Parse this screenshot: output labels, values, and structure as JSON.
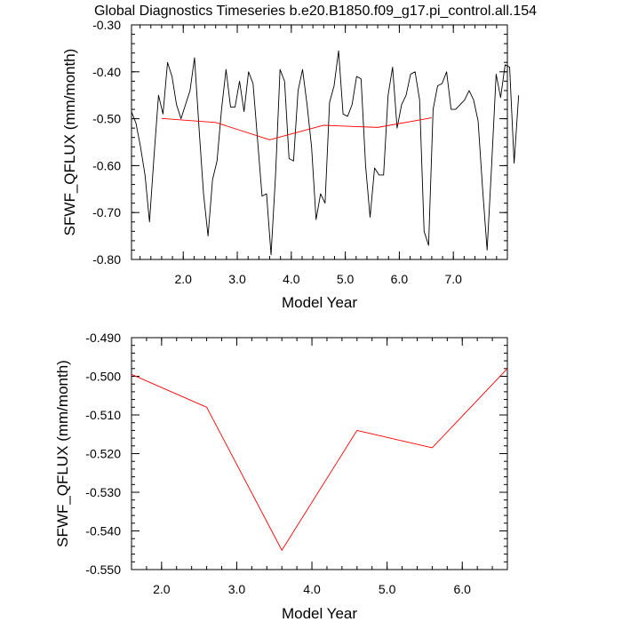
{
  "chart_data": [
    {
      "type": "line",
      "title": "Global Diagnostics Timeseries b.e20.B1850.f09_g17.pi_control.all.154",
      "xlabel": "Model Year",
      "ylabel": "SFWF_QFLUX (mm/month)",
      "xlim": [
        1.042,
        8.0
      ],
      "ylim": [
        -0.8,
        -0.3
      ],
      "xticks": [
        2.0,
        3.0,
        4.0,
        5.0,
        6.0,
        7.0
      ],
      "xtick_labels": [
        "2.0",
        "3.0",
        "4.0",
        "5.0",
        "6.0",
        "7.0"
      ],
      "yticks": [
        -0.3,
        -0.4,
        -0.5,
        -0.6,
        -0.7,
        -0.8
      ],
      "ytick_labels": [
        "-0.30",
        "-0.40",
        "-0.50",
        "-0.60",
        "-0.70",
        "-0.80"
      ],
      "grid": false,
      "series": [
        {
          "color": "#000000",
          "x_start": 1.042,
          "x_step": 0.08333,
          "values": [
            -0.485,
            -0.51,
            -0.56,
            -0.62,
            -0.72,
            -0.58,
            -0.45,
            -0.49,
            -0.38,
            -0.41,
            -0.47,
            -0.5,
            -0.47,
            -0.44,
            -0.37,
            -0.52,
            -0.66,
            -0.75,
            -0.63,
            -0.59,
            -0.48,
            -0.395,
            -0.475,
            -0.475,
            -0.42,
            -0.485,
            -0.4,
            -0.425,
            -0.545,
            -0.665,
            -0.66,
            -0.79,
            -0.62,
            -0.395,
            -0.42,
            -0.585,
            -0.59,
            -0.44,
            -0.395,
            -0.47,
            -0.56,
            -0.715,
            -0.66,
            -0.68,
            -0.465,
            -0.43,
            -0.355,
            -0.49,
            -0.495,
            -0.47,
            -0.41,
            -0.415,
            -0.6,
            -0.71,
            -0.605,
            -0.62,
            -0.62,
            -0.45,
            -0.39,
            -0.52,
            -0.47,
            -0.45,
            -0.405,
            -0.4,
            -0.46,
            -0.74,
            -0.77,
            -0.48,
            -0.43,
            -0.425,
            -0.4,
            -0.48,
            -0.48,
            -0.47,
            -0.46,
            -0.44,
            -0.46,
            -0.505,
            -0.65,
            -0.78,
            -0.6,
            -0.405,
            -0.455,
            -0.385,
            -0.39,
            -0.595,
            -0.45
          ]
        },
        {
          "color": "#ff0000",
          "x": [
            1.6,
            2.6,
            3.6,
            4.6,
            5.6,
            6.6
          ],
          "values": [
            -0.4995,
            -0.508,
            -0.545,
            -0.514,
            -0.5185,
            -0.498
          ]
        }
      ]
    },
    {
      "type": "line",
      "xlabel": "Model Year",
      "ylabel": "SFWF_QFLUX (mm/month)",
      "xlim": [
        1.6,
        6.6
      ],
      "ylim": [
        -0.55,
        -0.49
      ],
      "xticks": [
        2.0,
        3.0,
        4.0,
        5.0,
        6.0
      ],
      "xtick_labels": [
        "2.0",
        "3.0",
        "4.0",
        "5.0",
        "6.0"
      ],
      "yticks": [
        -0.49,
        -0.5,
        -0.51,
        -0.52,
        -0.53,
        -0.54,
        -0.55
      ],
      "ytick_labels": [
        "-0.490",
        "-0.500",
        "-0.510",
        "-0.520",
        "-0.530",
        "-0.540",
        "-0.550"
      ],
      "grid": false,
      "series": [
        {
          "color": "#ff0000",
          "x": [
            1.6,
            2.6,
            3.6,
            4.6,
            5.6,
            6.6
          ],
          "values": [
            -0.4995,
            -0.508,
            -0.545,
            -0.514,
            -0.5185,
            -0.498
          ]
        }
      ]
    }
  ]
}
